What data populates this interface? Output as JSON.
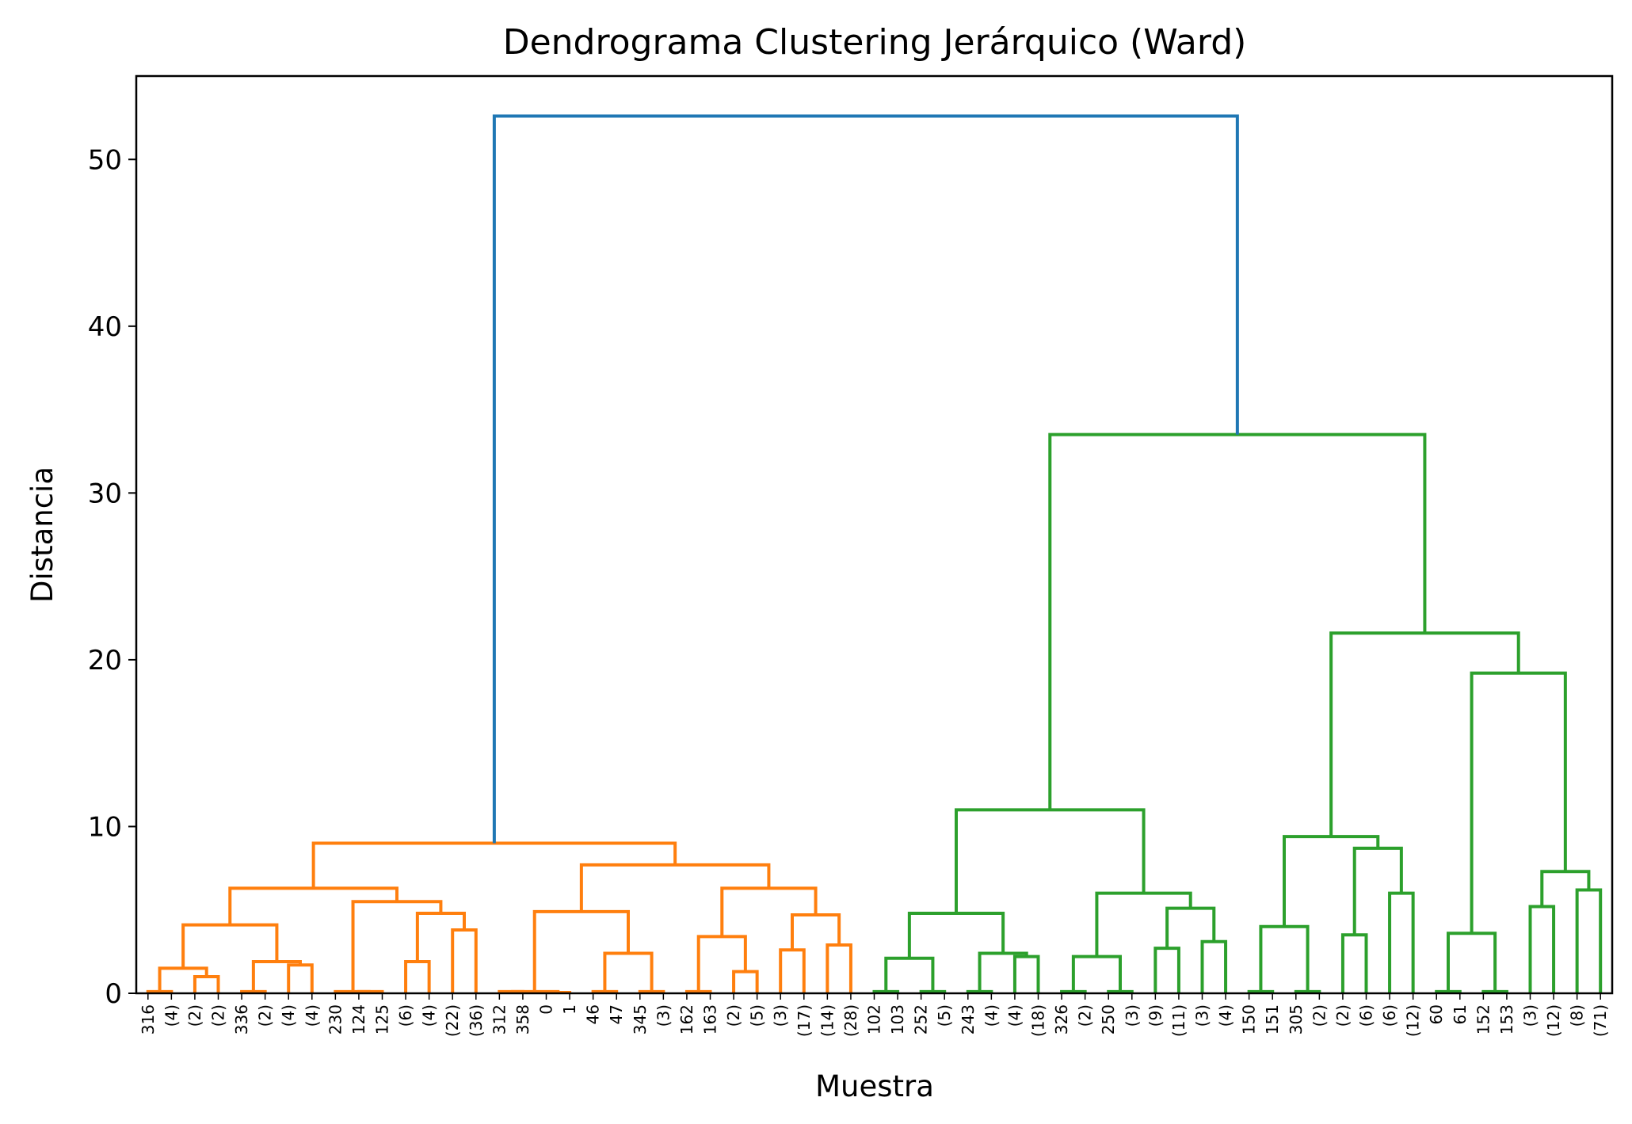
{
  "chart_data": {
    "type": "dendrogram",
    "title": "Dendrograma Clustering Jerárquico (Ward)",
    "xlabel": "Muestra",
    "ylabel": "Distancia",
    "ylim": [
      0,
      55
    ],
    "yticks": [
      0,
      10,
      20,
      30,
      40,
      50
    ],
    "grid": false,
    "leaves": [
      "316",
      "(4)",
      "(2)",
      "(2)",
      "336",
      "(2)",
      "(4)",
      "(4)",
      "230",
      "124",
      "125",
      "(6)",
      "(4)",
      "(22)",
      "(36)",
      "312",
      "358",
      "0",
      "1",
      "46",
      "47",
      "345",
      "(3)",
      "162",
      "163",
      "(2)",
      "(5)",
      "(3)",
      "(17)",
      "(14)",
      "(28)",
      "102",
      "103",
      "252",
      "(5)",
      "243",
      "(4)",
      "(4)",
      "(18)",
      "326",
      "(2)",
      "250",
      "(3)",
      "(9)",
      "(11)",
      "(3)",
      "(4)",
      "150",
      "151",
      "305",
      "(2)",
      "(2)",
      "(6)",
      "(6)",
      "(12)",
      "60",
      "61",
      "152",
      "153",
      "(3)",
      "(12)",
      "(8)",
      "(71)"
    ],
    "series": [
      {
        "color": "#ff7f0e"
      },
      {
        "color": "#2ca02c"
      },
      {
        "color": "#1f77b4"
      }
    ],
    "links": [
      {
        "l": 0,
        "r": 1,
        "h": 0.1,
        "c": 0
      },
      {
        "l": 2,
        "r": 3,
        "h": 1.0,
        "c": 0
      },
      {
        "l": 63,
        "r": 64,
        "h": 1.5,
        "c": 0
      },
      {
        "l": 4,
        "r": 5,
        "h": 0.1,
        "c": 0
      },
      {
        "l": 6,
        "r": 7,
        "h": 1.7,
        "c": 0
      },
      {
        "l": 66,
        "r": 67,
        "h": 1.9,
        "c": 0
      },
      {
        "l": 65,
        "r": 68,
        "h": 4.1,
        "c": 0
      },
      {
        "l": 9,
        "r": 10,
        "h": 0.1,
        "c": 0
      },
      {
        "l": 8,
        "r": 70,
        "h": 0.1,
        "c": 0
      },
      {
        "l": 11,
        "r": 12,
        "h": 1.9,
        "c": 0
      },
      {
        "l": 13,
        "r": 14,
        "h": 3.8,
        "c": 0
      },
      {
        "l": 72,
        "r": 73,
        "h": 4.8,
        "c": 0
      },
      {
        "l": 71,
        "r": 74,
        "h": 5.5,
        "c": 0
      },
      {
        "l": 69,
        "r": 75,
        "h": 6.3,
        "c": 0
      },
      {
        "l": 15,
        "r": 16,
        "h": 0.1,
        "c": 0
      },
      {
        "l": 17,
        "r": 18,
        "h": 0.05,
        "c": 0
      },
      {
        "l": 77,
        "r": 78,
        "h": 0.1,
        "c": 0
      },
      {
        "l": 19,
        "r": 20,
        "h": 0.1,
        "c": 0
      },
      {
        "l": 21,
        "r": 22,
        "h": 0.1,
        "c": 0
      },
      {
        "l": 80,
        "r": 81,
        "h": 2.4,
        "c": 0
      },
      {
        "l": 79,
        "r": 82,
        "h": 4.9,
        "c": 0
      },
      {
        "l": 23,
        "r": 24,
        "h": 0.1,
        "c": 0
      },
      {
        "l": 25,
        "r": 26,
        "h": 1.3,
        "c": 0
      },
      {
        "l": 84,
        "r": 85,
        "h": 3.4,
        "c": 0
      },
      {
        "l": 27,
        "r": 28,
        "h": 2.6,
        "c": 0
      },
      {
        "l": 29,
        "r": 30,
        "h": 2.9,
        "c": 0
      },
      {
        "l": 87,
        "r": 88,
        "h": 4.7,
        "c": 0
      },
      {
        "l": 86,
        "r": 89,
        "h": 6.3,
        "c": 0
      },
      {
        "l": 83,
        "r": 90,
        "h": 7.7,
        "c": 0
      },
      {
        "l": 76,
        "r": 91,
        "h": 9.0,
        "c": 0
      },
      {
        "l": 31,
        "r": 32,
        "h": 0.1,
        "c": 1
      },
      {
        "l": 33,
        "r": 34,
        "h": 0.1,
        "c": 1
      },
      {
        "l": 93,
        "r": 94,
        "h": 2.1,
        "c": 1
      },
      {
        "l": 35,
        "r": 36,
        "h": 0.1,
        "c": 1
      },
      {
        "l": 37,
        "r": 38,
        "h": 2.2,
        "c": 1
      },
      {
        "l": 96,
        "r": 97,
        "h": 2.4,
        "c": 1
      },
      {
        "l": 95,
        "r": 98,
        "h": 4.8,
        "c": 1
      },
      {
        "l": 39,
        "r": 40,
        "h": 0.1,
        "c": 1
      },
      {
        "l": 41,
        "r": 42,
        "h": 0.1,
        "c": 1
      },
      {
        "l": 100,
        "r": 101,
        "h": 2.2,
        "c": 1
      },
      {
        "l": 43,
        "r": 44,
        "h": 2.7,
        "c": 1
      },
      {
        "l": 45,
        "r": 46,
        "h": 3.1,
        "c": 1
      },
      {
        "l": 103,
        "r": 104,
        "h": 5.1,
        "c": 1
      },
      {
        "l": 102,
        "r": 105,
        "h": 6.0,
        "c": 1
      },
      {
        "l": 99,
        "r": 106,
        "h": 11.0,
        "c": 1
      },
      {
        "l": 47,
        "r": 48,
        "h": 0.1,
        "c": 1
      },
      {
        "l": 49,
        "r": 50,
        "h": 0.1,
        "c": 1
      },
      {
        "l": 108,
        "r": 109,
        "h": 4.0,
        "c": 1
      },
      {
        "l": 51,
        "r": 52,
        "h": 3.5,
        "c": 1
      },
      {
        "l": 53,
        "r": 54,
        "h": 6.0,
        "c": 1
      },
      {
        "l": 111,
        "r": 112,
        "h": 8.7,
        "c": 1
      },
      {
        "l": 110,
        "r": 113,
        "h": 9.4,
        "c": 1
      },
      {
        "l": 55,
        "r": 56,
        "h": 0.1,
        "c": 1
      },
      {
        "l": 57,
        "r": 58,
        "h": 0.1,
        "c": 1
      },
      {
        "l": 115,
        "r": 116,
        "h": 3.6,
        "c": 1
      },
      {
        "l": 59,
        "r": 60,
        "h": 5.2,
        "c": 1
      },
      {
        "l": 61,
        "r": 62,
        "h": 6.2,
        "c": 1
      },
      {
        "l": 118,
        "r": 119,
        "h": 7.3,
        "c": 1
      },
      {
        "l": 117,
        "r": 120,
        "h": 19.2,
        "c": 1
      },
      {
        "l": 114,
        "r": 121,
        "h": 21.6,
        "c": 1
      },
      {
        "l": 107,
        "r": 122,
        "h": 33.5,
        "c": 1
      },
      {
        "l": 92,
        "r": 123,
        "h": 52.6,
        "c": 2
      }
    ]
  }
}
